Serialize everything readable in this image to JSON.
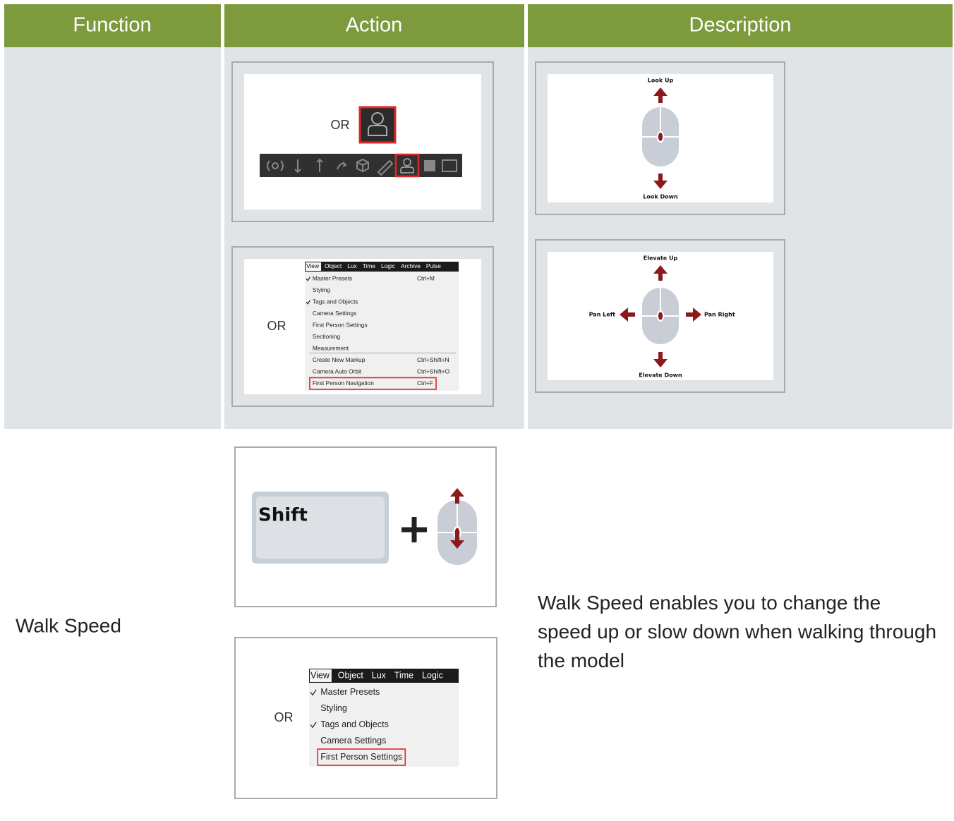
{
  "table": {
    "headers": [
      "Function",
      "Action",
      "Description"
    ],
    "row1": {
      "toolbar_image": {
        "or_label": "OR"
      },
      "menu_image": {
        "or_label": "OR",
        "menu_bar": [
          "View",
          "Object",
          "Lux",
          "Time",
          "Logic",
          "Archive",
          "Pulse"
        ],
        "items": [
          {
            "label": "Master Presets",
            "shortcut": "Ctrl+M",
            "checked": true
          },
          {
            "label": "Styling"
          },
          {
            "label": "Tags and Objects",
            "checked": true
          },
          {
            "label": "Camera Settings"
          },
          {
            "label": "First Person Settings"
          },
          {
            "label": "Sectioning"
          },
          {
            "label": "Measurement"
          },
          {
            "label": "Create New Markup",
            "shortcut": "Ctrl+Shift+N",
            "separator_before": true
          },
          {
            "label": "Camera Auto Orbit",
            "shortcut": "Ctrl+Shift+O"
          },
          {
            "label": "First Person Navigation",
            "shortcut": "Ctrl+F",
            "highlight": true
          }
        ]
      },
      "look_image": {
        "up": "Look Up",
        "down": "Look Down"
      },
      "move_image": {
        "up": "Elevate Up",
        "left": "Pan Left",
        "right": "Pan Right",
        "down": "Elevate Down"
      }
    },
    "row2": {
      "function": "Walk Speed",
      "shift_image": {
        "key": "Shift"
      },
      "menu_image": {
        "or_label": "OR",
        "menu_bar": [
          "View",
          "Object",
          "Lux",
          "Time",
          "Logic"
        ],
        "items": [
          {
            "label": "Master Presets",
            "checked": true
          },
          {
            "label": "Styling"
          },
          {
            "label": "Tags and Objects",
            "checked": true
          },
          {
            "label": "Camera Settings"
          },
          {
            "label": "First Person Settings",
            "highlight": true
          }
        ]
      },
      "description": "Walk Speed enables you to change the speed up or slow down when walking through the model"
    }
  }
}
